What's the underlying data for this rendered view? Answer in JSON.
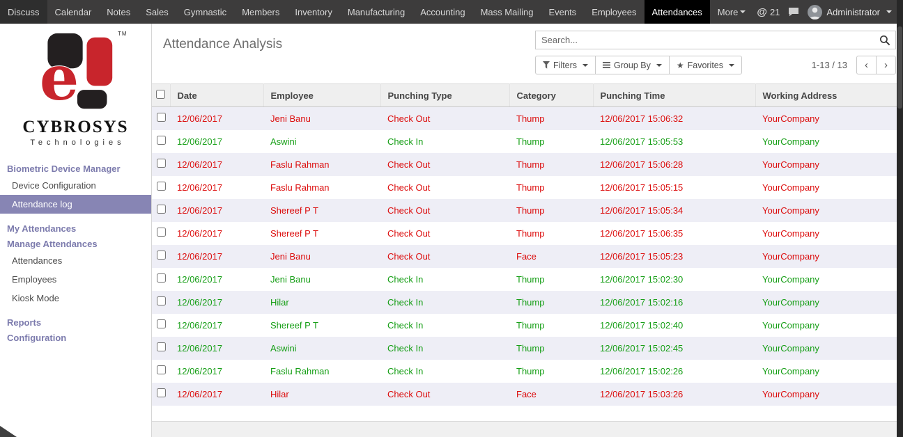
{
  "colors": {
    "accent": "#7c7bad",
    "accent_bg": "#8785b4",
    "danger": "#dc0c0c",
    "success": "#159e15",
    "topbar_bg": "#3d3c3c",
    "topbar_active_bg": "#000000",
    "stripe": "#eeeef6"
  },
  "topbar": {
    "menus": [
      {
        "label": "Discuss"
      },
      {
        "label": "Calendar"
      },
      {
        "label": "Notes"
      },
      {
        "label": "Sales"
      },
      {
        "label": "Gymnastic"
      },
      {
        "label": "Members"
      },
      {
        "label": "Inventory"
      },
      {
        "label": "Manufacturing"
      },
      {
        "label": "Accounting"
      },
      {
        "label": "Mass Mailing"
      },
      {
        "label": "Events"
      },
      {
        "label": "Employees"
      },
      {
        "label": "Attendances",
        "active": true
      },
      {
        "label": "More",
        "caret": true
      }
    ],
    "notifications": {
      "at_icon": "@",
      "count": "21"
    },
    "user": {
      "name": "Administrator"
    }
  },
  "sidebar": {
    "brand": {
      "name": "CYBROSYS",
      "subtitle": "Technologies",
      "tm": "TM"
    },
    "sections": [
      {
        "heading": "Biometric Device Manager",
        "items": [
          {
            "label": "Device Configuration"
          },
          {
            "label": "Attendance log",
            "active": true
          }
        ]
      },
      {
        "heading": "My Attendances",
        "items": []
      },
      {
        "heading": "Manage Attendances",
        "items": [
          {
            "label": "Attendances"
          },
          {
            "label": "Employees"
          },
          {
            "label": "Kiosk Mode"
          }
        ]
      },
      {
        "heading": "Reports",
        "items": []
      },
      {
        "heading": "Configuration",
        "items": []
      }
    ]
  },
  "page": {
    "title": "Attendance Analysis"
  },
  "search": {
    "placeholder": "Search..."
  },
  "toolbar": {
    "filters": "Filters",
    "group_by": "Group By",
    "favorites": "Favorites",
    "favorites_icon": "★",
    "pager": "1-13 / 13",
    "prev_icon": "‹",
    "next_icon": "›"
  },
  "table": {
    "columns": [
      {
        "key": "date",
        "label": "Date"
      },
      {
        "key": "employee",
        "label": "Employee"
      },
      {
        "key": "punching-type",
        "label": "Punching Type"
      },
      {
        "key": "category",
        "label": "Category"
      },
      {
        "key": "punching-time",
        "label": "Punching Time"
      },
      {
        "key": "working-address",
        "label": "Working Address"
      }
    ],
    "rows": [
      {
        "status": "out",
        "cells": [
          "12/06/2017",
          "Jeni Banu",
          "Check Out",
          "Thump",
          "12/06/2017 15:06:32",
          "YourCompany"
        ]
      },
      {
        "status": "in",
        "cells": [
          "12/06/2017",
          "Aswini",
          "Check In",
          "Thump",
          "12/06/2017 15:05:53",
          "YourCompany"
        ]
      },
      {
        "status": "out",
        "cells": [
          "12/06/2017",
          "Faslu Rahman",
          "Check Out",
          "Thump",
          "12/06/2017 15:06:28",
          "YourCompany"
        ]
      },
      {
        "status": "out",
        "cells": [
          "12/06/2017",
          "Faslu Rahman",
          "Check Out",
          "Thump",
          "12/06/2017 15:05:15",
          "YourCompany"
        ]
      },
      {
        "status": "out",
        "cells": [
          "12/06/2017",
          "Shereef P T",
          "Check Out",
          "Thump",
          "12/06/2017 15:05:34",
          "YourCompany"
        ]
      },
      {
        "status": "out",
        "cells": [
          "12/06/2017",
          "Shereef P T",
          "Check Out",
          "Thump",
          "12/06/2017 15:06:35",
          "YourCompany"
        ]
      },
      {
        "status": "out",
        "cells": [
          "12/06/2017",
          "Jeni Banu",
          "Check Out",
          "Face",
          "12/06/2017 15:05:23",
          "YourCompany"
        ]
      },
      {
        "status": "in",
        "cells": [
          "12/06/2017",
          "Jeni Banu",
          "Check In",
          "Thump",
          "12/06/2017 15:02:30",
          "YourCompany"
        ]
      },
      {
        "status": "in",
        "cells": [
          "12/06/2017",
          "Hilar",
          "Check In",
          "Thump",
          "12/06/2017 15:02:16",
          "YourCompany"
        ]
      },
      {
        "status": "in",
        "cells": [
          "12/06/2017",
          "Shereef P T",
          "Check In",
          "Thump",
          "12/06/2017 15:02:40",
          "YourCompany"
        ]
      },
      {
        "status": "in",
        "cells": [
          "12/06/2017",
          "Aswini",
          "Check In",
          "Thump",
          "12/06/2017 15:02:45",
          "YourCompany"
        ]
      },
      {
        "status": "in",
        "cells": [
          "12/06/2017",
          "Faslu Rahman",
          "Check In",
          "Thump",
          "12/06/2017 15:02:26",
          "YourCompany"
        ]
      },
      {
        "status": "out",
        "cells": [
          "12/06/2017",
          "Hilar",
          "Check Out",
          "Face",
          "12/06/2017 15:03:26",
          "YourCompany"
        ]
      }
    ]
  }
}
